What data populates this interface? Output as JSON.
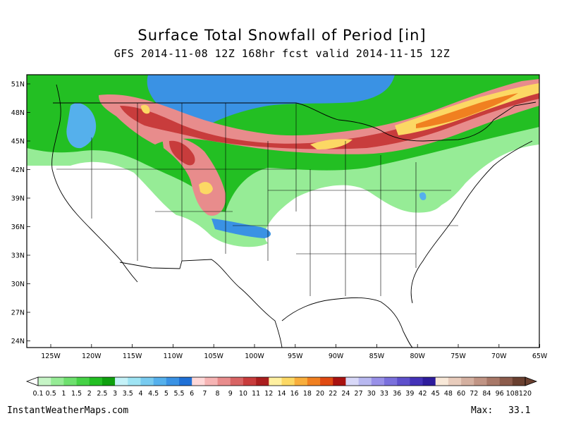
{
  "title": "Surface Total Snowfall of Period [in]",
  "subtitle": "GFS 2014-11-08 12Z 168hr fcst valid 2014-11-15 12Z",
  "map": {
    "lat_labels": [
      "51N",
      "48N",
      "45N",
      "42N",
      "39N",
      "36N",
      "33N",
      "30N",
      "27N",
      "24N"
    ],
    "lon_labels": [
      "125W",
      "120W",
      "115W",
      "110W",
      "105W",
      "100W",
      "95W",
      "90W",
      "85W",
      "80W",
      "75W",
      "70W",
      "65W"
    ]
  },
  "legend": {
    "labels": [
      "0.1",
      "0.5",
      "1",
      "1.5",
      "2",
      "2.5",
      "3",
      "3.5",
      "4",
      "4.5",
      "5",
      "5.5",
      "6",
      "7",
      "8",
      "9",
      "10",
      "11",
      "12",
      "14",
      "16",
      "18",
      "20",
      "22",
      "24",
      "27",
      "30",
      "33",
      "36",
      "39",
      "42",
      "45",
      "48",
      "60",
      "72",
      "84",
      "96",
      "108",
      "120"
    ],
    "colors": [
      "#ffffff",
      "#c6f5c6",
      "#96ec96",
      "#6ee06e",
      "#46d246",
      "#23bf23",
      "#0fa00f",
      "#c4f2f8",
      "#9ee4f4",
      "#78cbf0",
      "#55b0ec",
      "#3a92e4",
      "#1f70d6",
      "#ffd8d8",
      "#f6b4b4",
      "#e88c8c",
      "#d86464",
      "#c83c3c",
      "#aa1e1e",
      "#fff0a0",
      "#fcd864",
      "#f8ae3c",
      "#f08020",
      "#e04a12",
      "#a81210",
      "#d8d8f8",
      "#b8b8f0",
      "#9890e8",
      "#7a70dc",
      "#5e50cc",
      "#4432b8",
      "#2e1c9c",
      "#f8e8d8",
      "#e8ccbc",
      "#d4b0a0",
      "#c09484",
      "#a87868",
      "#8c5c4c",
      "#6a4030"
    ]
  },
  "footer": {
    "site": "InstantWeatherMaps.com",
    "max_label": "Max:",
    "max_value": "33.1"
  },
  "colors": {
    "snow_light": "#6ee06e",
    "snow_green": "#23bf23",
    "snow_blue": "#3a92e4",
    "snow_pink": "#e88c8c",
    "snow_red": "#c83c3c",
    "snow_yellow": "#fcd864",
    "snow_orange": "#f08020"
  }
}
